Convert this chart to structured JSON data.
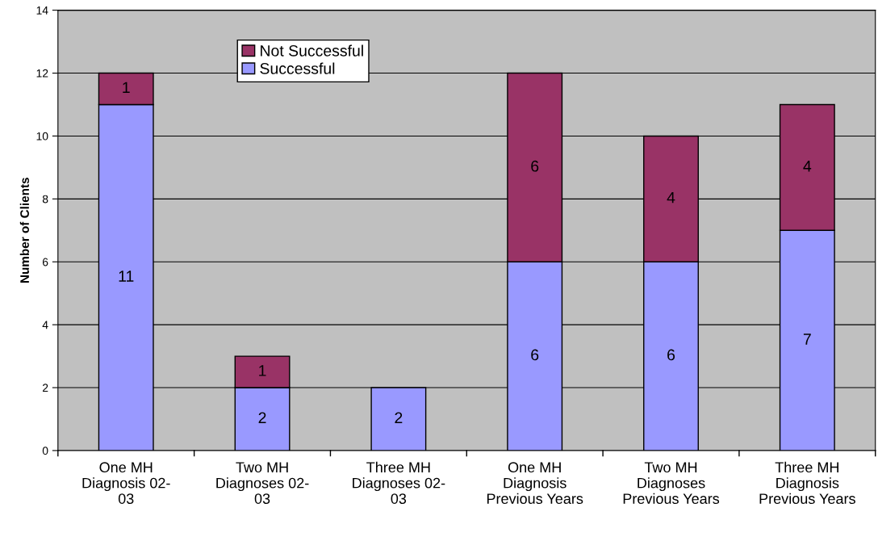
{
  "chart_data": {
    "type": "bar",
    "stacked": true,
    "ylabel": "Number of Clients",
    "categories": [
      "One MH\nDiagnosis 02-\n03",
      "Two MH\nDiagnoses 02-\n03",
      "Three MH\nDiagnoses 02-\n03",
      "One MH\nDiagnosis\nPrevious Years",
      "Two MH\nDiagnoses\nPrevious Years",
      "Three MH\nDiagnosis\nPrevious Years"
    ],
    "series": [
      {
        "name": "Successful",
        "color": "#9999ff",
        "values": [
          11,
          2,
          2,
          6,
          6,
          7
        ],
        "value_labels": [
          "11",
          "2",
          "2",
          "6",
          "6",
          "7"
        ]
      },
      {
        "name": "Not Successful",
        "color": "#993366",
        "values": [
          1,
          1,
          null,
          6,
          4,
          4
        ],
        "value_labels": [
          "1",
          "1",
          null,
          "6",
          "4",
          "4"
        ]
      }
    ],
    "ylim": [
      0,
      14
    ],
    "yticks": [
      0,
      2,
      4,
      6,
      8,
      10,
      12,
      14
    ],
    "grid": "y",
    "legend": "top left"
  }
}
